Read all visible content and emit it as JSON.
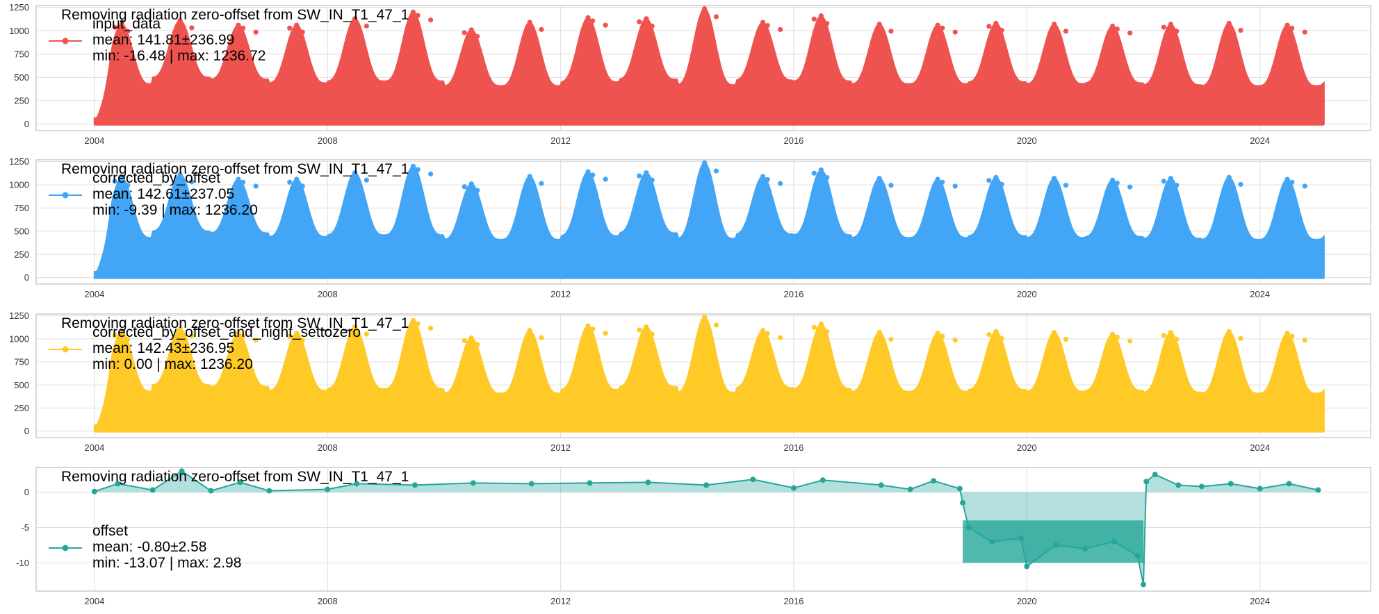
{
  "chart_data": [
    {
      "type": "line",
      "title": "Removing radiation zero-offset from SW_IN_T1_47_1",
      "xlabel": "",
      "ylabel": "",
      "xlim": [
        2003.0,
        2025.9
      ],
      "ylim": [
        -70,
        1270
      ],
      "x_ticks": [
        "2004",
        "2008",
        "2012",
        "2016",
        "2020",
        "2024"
      ],
      "y_ticks": [
        "0",
        "250",
        "500",
        "750",
        "1000",
        "1250"
      ],
      "grid": true,
      "legend_position": "top-left",
      "series": [
        {
          "name": "input_data",
          "color": "#ef5350",
          "legend_lines": [
            "mean: 141.81±236.99",
            "min: -16.48  |  max: 1236.72"
          ],
          "x_range": [
            2004.0,
            2025.1
          ],
          "summer_peaks": [
            1070,
            1110,
            1060,
            1060,
            1130,
            1200,
            1010,
            1090,
            1140,
            1130,
            1236.72,
            1090,
            1160,
            1070,
            1060,
            1080,
            1070,
            1050,
            1070,
            1080,
            1060
          ],
          "winter_troughs": [
            430,
            500,
            480,
            440,
            460,
            460,
            410,
            410,
            450,
            480,
            420,
            470,
            460,
            430,
            430,
            450,
            430,
            440,
            420,
            410
          ],
          "data_min": -16.48,
          "data_max": 1236.72
        }
      ]
    },
    {
      "type": "line",
      "title": "Removing radiation zero-offset from SW_IN_T1_47_1",
      "xlabel": "",
      "ylabel": "",
      "xlim": [
        2003.0,
        2025.9
      ],
      "ylim": [
        -70,
        1270
      ],
      "x_ticks": [
        "2004",
        "2008",
        "2012",
        "2016",
        "2020",
        "2024"
      ],
      "y_ticks": [
        "0",
        "250",
        "500",
        "750",
        "1000",
        "1250"
      ],
      "grid": true,
      "legend_position": "top-left",
      "series": [
        {
          "name": "corrected_by_offset",
          "color": "#42a5f5",
          "legend_lines": [
            "mean: 142.61±237.05",
            "min: -9.39  |  max: 1236.20"
          ],
          "x_range": [
            2004.0,
            2025.1
          ],
          "summer_peaks": [
            1070,
            1110,
            1060,
            1060,
            1130,
            1200,
            1010,
            1090,
            1140,
            1130,
            1236.2,
            1090,
            1160,
            1070,
            1060,
            1080,
            1070,
            1050,
            1070,
            1080,
            1060
          ],
          "winter_troughs": [
            430,
            500,
            480,
            440,
            460,
            460,
            410,
            410,
            450,
            480,
            420,
            470,
            460,
            430,
            430,
            450,
            430,
            440,
            420,
            410
          ],
          "data_min": -9.39,
          "data_max": 1236.2
        }
      ]
    },
    {
      "type": "line",
      "title": "Removing radiation zero-offset from SW_IN_T1_47_1",
      "xlabel": "",
      "ylabel": "",
      "xlim": [
        2003.0,
        2025.9
      ],
      "ylim": [
        -70,
        1270
      ],
      "x_ticks": [
        "2004",
        "2008",
        "2012",
        "2016",
        "2020",
        "2024"
      ],
      "y_ticks": [
        "0",
        "250",
        "500",
        "750",
        "1000",
        "1250"
      ],
      "grid": true,
      "legend_position": "top-left",
      "series": [
        {
          "name": "corrected_by_offset_and_night_settozero",
          "color": "#ffca28",
          "legend_lines": [
            "mean: 142.43±236.95",
            "min: 0.00  |  max: 1236.20"
          ],
          "x_range": [
            2004.0,
            2025.1
          ],
          "summer_peaks": [
            1070,
            1110,
            1060,
            1060,
            1130,
            1200,
            1010,
            1090,
            1140,
            1130,
            1236.2,
            1090,
            1160,
            1070,
            1060,
            1080,
            1070,
            1050,
            1070,
            1080,
            1060
          ],
          "winter_troughs": [
            430,
            500,
            480,
            440,
            460,
            460,
            410,
            410,
            450,
            480,
            420,
            470,
            460,
            430,
            430,
            450,
            430,
            440,
            420,
            410
          ],
          "data_min": 0.0,
          "data_max": 1236.2
        }
      ]
    },
    {
      "type": "line",
      "title": "Removing radiation zero-offset from SW_IN_T1_47_1",
      "xlabel": "",
      "ylabel": "",
      "xlim": [
        2003.0,
        2025.9
      ],
      "ylim": [
        -14,
        3.5
      ],
      "x_ticks": [
        "2004",
        "2008",
        "2012",
        "2016",
        "2020",
        "2024"
      ],
      "y_ticks": [
        "-10",
        "-5",
        "0"
      ],
      "grid": true,
      "legend_position": "lower-left",
      "series": [
        {
          "name": "offset",
          "color": "#26a69a",
          "legend_lines": [
            "mean: -0.80±2.58",
            "min: -13.07  |  max: 2.98"
          ],
          "points": [
            [
              2004.0,
              0.1
            ],
            [
              2004.4,
              1.2
            ],
            [
              2005.0,
              0.3
            ],
            [
              2005.5,
              2.98
            ],
            [
              2006.0,
              0.2
            ],
            [
              2006.5,
              1.4
            ],
            [
              2007.0,
              0.2
            ],
            [
              2008.0,
              0.4
            ],
            [
              2008.5,
              1.2
            ],
            [
              2009.5,
              1.0
            ],
            [
              2010.5,
              1.3
            ],
            [
              2011.5,
              1.2
            ],
            [
              2012.5,
              1.3
            ],
            [
              2013.5,
              1.4
            ],
            [
              2014.5,
              1.0
            ],
            [
              2015.3,
              1.8
            ],
            [
              2016.0,
              0.6
            ],
            [
              2016.5,
              1.7
            ],
            [
              2017.5,
              1.0
            ],
            [
              2018.0,
              0.4
            ],
            [
              2018.4,
              1.6
            ],
            [
              2018.85,
              0.5
            ],
            [
              2018.9,
              -1.5
            ],
            [
              2019.0,
              -5.0
            ],
            [
              2019.4,
              -7.0
            ],
            [
              2019.9,
              -6.5
            ],
            [
              2020.0,
              -10.5
            ],
            [
              2020.5,
              -7.5
            ],
            [
              2021.0,
              -8.0
            ],
            [
              2021.5,
              -7.0
            ],
            [
              2021.9,
              -9.0
            ],
            [
              2022.0,
              -13.07
            ],
            [
              2022.05,
              1.5
            ],
            [
              2022.2,
              2.5
            ],
            [
              2022.6,
              1.0
            ],
            [
              2023.0,
              0.8
            ],
            [
              2023.5,
              1.2
            ],
            [
              2024.0,
              0.5
            ],
            [
              2024.5,
              1.2
            ],
            [
              2025.0,
              0.3
            ]
          ],
          "data_min": -13.07,
          "data_max": 2.98
        }
      ]
    }
  ]
}
